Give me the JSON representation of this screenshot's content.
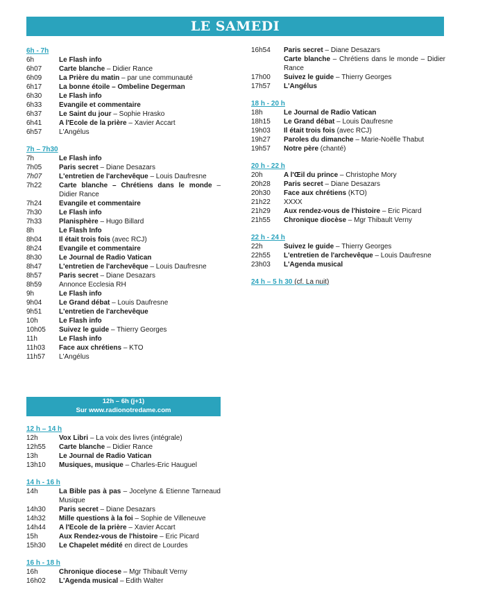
{
  "title": "LE SAMEDI",
  "accent": "#2aa3bd",
  "box": {
    "line1": "12h – 6h  (j+1)",
    "line2": "Sur www.radionotredame.com"
  },
  "left_top": [
    {
      "header": "6h - 7h",
      "rows": [
        {
          "t": "6h",
          "b": "Le Flash info",
          "r": ""
        },
        {
          "t": "6h07",
          "b": "Carte blanche",
          "r": " – Didier Rance"
        },
        {
          "t": "6h09",
          "b": "La Prière du matin",
          "r": " – par une communauté"
        },
        {
          "t": "6h17",
          "b": "La bonne étoile – Ombeline Degerman",
          "r": ""
        },
        {
          "t": "6h30",
          "b": "Le Flash info",
          "r": ""
        },
        {
          "t": "6h33",
          "b": "Evangile et commentaire",
          "r": ""
        },
        {
          "t": "6h37",
          "b": "Le Saint du jour",
          "r": " – Sophie Hrasko"
        },
        {
          "t": "6h41",
          "b": "A l'Ecole de la prière",
          "r": " – Xavier Accart"
        },
        {
          "t": "6h57",
          "b": "",
          "r": "L'Angélus"
        }
      ]
    },
    {
      "header": "7h – 7h30",
      "rows": [
        {
          "t": "7h",
          "b": "Le Flash info",
          "r": ""
        },
        {
          "t": "7h05",
          "b": "Paris secret",
          "r": " – Diane Desazars"
        },
        {
          "t": "7h07",
          "i": true,
          "b": "L'entretien de l'archevêque",
          "r": " – Louis Daufresne"
        },
        {
          "t": "7h22",
          "b": "Carte blanche – Chrétiens dans le monde",
          "r": " – Didier Rance"
        },
        {
          "t": "7h24",
          "b": "Evangile et commentaire",
          "r": ""
        },
        {
          "t": "7h30",
          "b": "Le Flash info",
          "r": ""
        },
        {
          "t": "7h33",
          "b": "Planisphère",
          "r": " – Hugo Billard"
        },
        {
          "t": "8h",
          "b": "Le Flash Info",
          "r": ""
        },
        {
          "t": "8h04",
          "b": "Il était trois fois",
          "r": " (avec RCJ)"
        },
        {
          "t": "8h24",
          "b": "Evangile et commentaire",
          "r": ""
        },
        {
          "t": "8h30",
          "b": "Le Journal de Radio Vatican",
          "r": ""
        },
        {
          "t": "8h47",
          "b": "L'entretien de l'archevêque",
          "r": " – Louis Daufresne"
        },
        {
          "t": "8h57",
          "b": "Paris secret",
          "r": " – Diane Desazars"
        },
        {
          "t": "8h59",
          "b": "",
          "r": "Annonce Ecclesia RH"
        },
        {
          "t": "9h",
          "b": "Le Flash info",
          "r": ""
        },
        {
          "t": "9h04",
          "b": "Le Grand débat",
          "r": " – Louis Daufresne"
        },
        {
          "t": "9h51",
          "b": "L'entretien de l'archevêque",
          "r": ""
        },
        {
          "t": "10h",
          "b": "Le Flash info",
          "r": ""
        },
        {
          "t": "10h05",
          "b": "Suivez le guide",
          "r": " –  Thierry Georges"
        },
        {
          "t": "11h",
          "b": "Le Flash info",
          "r": ""
        },
        {
          "t": "11h03",
          "b": "Face aux chrétiens",
          "r": " – KTO"
        },
        {
          "t": "11h57",
          "b": "",
          "r": "L'Angélus"
        }
      ]
    }
  ],
  "left_bottom": [
    {
      "header": "12 h – 14 h",
      "rows": [
        {
          "t": "12h",
          "b": "Vox Libri",
          "r": " – La voix des livres (intégrale)"
        },
        {
          "t": "12h55",
          "b": "Carte blanche",
          "r": " – Didier Rance"
        },
        {
          "t": "13h",
          "b": "Le Journal de Radio Vatican",
          "r": ""
        },
        {
          "t": "13h10",
          "b": "Musiques, musique",
          "r": " – Charles-Eric Hauguel"
        }
      ]
    },
    {
      "header": "14 h - 16 h",
      "rows": [
        {
          "t": "14h",
          "b": "La Bible pas à pas",
          "r": " – Jocelyne & Etienne Tarneaud Musique"
        },
        {
          "t": "14h30",
          "b": "Paris secret",
          "r": " – Diane Desazars"
        },
        {
          "t": "14h32",
          "b": "Mille questions à la foi",
          "r": " – Sophie de Villeneuve"
        },
        {
          "t": "14h44",
          "b": "A l'Ecole de la prière",
          "r": " – Xavier Accart"
        },
        {
          "t": "15h",
          "b": "Aux Rendez-vous de l'histoire",
          "r": " – Eric Picard"
        },
        {
          "t": "15h30",
          "b": "Le Chapelet médité",
          "r": " en direct de Lourdes"
        }
      ]
    },
    {
      "header": "16 h - 18 h",
      "rows": [
        {
          "t": "16h",
          "b": "Chronique diocese",
          "r": " – Mgr Thibault Verny"
        },
        {
          "t": "16h02",
          "b": "L'Agenda musical",
          "r": " – Edith Walter"
        }
      ]
    }
  ],
  "right": [
    {
      "header": "",
      "rows": [
        {
          "t": "16h54",
          "b": "Paris secret",
          "r": " – Diane Desazars"
        },
        {
          "t": "",
          "b": "Carte blanche",
          "r": " – Chrétiens dans le monde – Didier Rance"
        },
        {
          "t": "17h00",
          "b": "Suivez le guide",
          "r": " – Thierry Georges"
        },
        {
          "t": "17h57",
          "b": "L'Angélus",
          "r": ""
        }
      ]
    },
    {
      "header": "18 h - 20 h",
      "rows": [
        {
          "t": "18h",
          "b": "Le Journal de Radio Vatican",
          "r": ""
        },
        {
          "t": "18h15",
          "b": "Le Grand débat",
          "r": " – Louis Daufresne"
        },
        {
          "t": "19h03",
          "b": "Il était trois fois",
          "r": " (avec RCJ)"
        },
        {
          "t": "19h27",
          "b": "Paroles du dimanche",
          "r": " – Marie-Noëlle Thabut"
        },
        {
          "t": "19h57",
          "b": "Notre père",
          "r": " (chanté)"
        }
      ]
    },
    {
      "header": "20 h - 22 h",
      "rows": [
        {
          "t": "20h",
          "b": "A l'Œil du prince",
          "r": " – Christophe Mory"
        },
        {
          "t": "20h28",
          "b": "Paris secret",
          "r": " – Diane Desazars"
        },
        {
          "t": "20h30",
          "b": "Face aux chrétiens",
          "r": " (KTO)"
        },
        {
          "t": "21h22",
          "b": "",
          "r": "XXXX"
        },
        {
          "t": "21h29",
          "b": "Aux rendez-vous de l'histoire",
          "r": " – Eric Picard"
        },
        {
          "t": "21h55",
          "b": "Chronique diocèse",
          "r": " – Mgr Thibault Verny"
        }
      ]
    },
    {
      "header": "22 h - 24 h",
      "rows": [
        {
          "t": "22h",
          "b": "Suivez le guide",
          "r": " – Thierry Georges"
        },
        {
          "t": "22h55",
          "b": "L'entretien de l'archevêque",
          "r": " – Louis Daufresne"
        },
        {
          "t": "23h03",
          "b": "L'Agenda musical",
          "r": ""
        }
      ]
    },
    {
      "header": "24 h – 5 h 30",
      "note": " (cf.  La nuit)",
      "rows": []
    }
  ]
}
